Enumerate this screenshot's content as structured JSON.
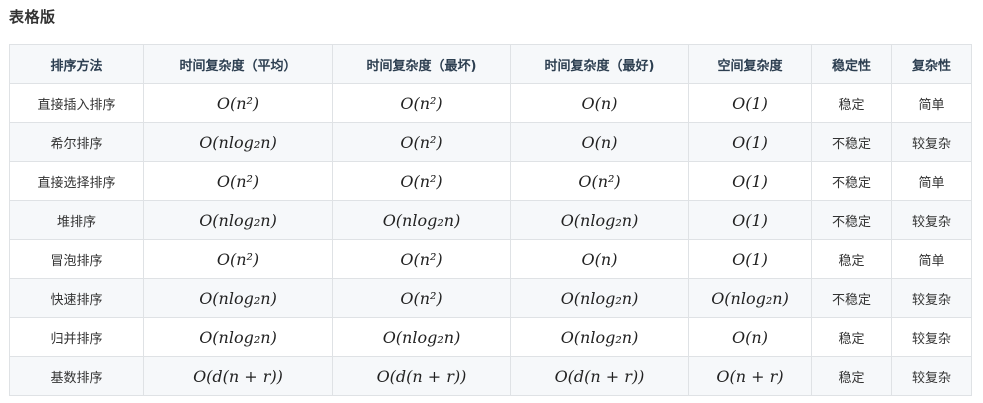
{
  "page": {
    "title": "表格版"
  },
  "table": {
    "headers": [
      "排序方法",
      "时间复杂度（平均）",
      "时间复杂度（最坏)",
      "时间复杂度（最好)",
      "空间复杂度",
      "稳定性",
      "复杂性"
    ],
    "rows": [
      [
        "直接插入排序",
        "O(n²)",
        "O(n²)",
        "O(n)",
        "O(1)",
        "稳定",
        "简单"
      ],
      [
        "希尔排序",
        "O(nlog₂n)",
        "O(n²)",
        "O(n)",
        "O(1)",
        "不稳定",
        "较复杂"
      ],
      [
        "直接选择排序",
        "O(n²)",
        "O(n²)",
        "O(n²)",
        "O(1)",
        "不稳定",
        "简单"
      ],
      [
        "堆排序",
        "O(nlog₂n)",
        "O(nlog₂n)",
        "O(nlog₂n)",
        "O(1)",
        "不稳定",
        "较复杂"
      ],
      [
        "冒泡排序",
        "O(n²)",
        "O(n²)",
        "O(n)",
        "O(1)",
        "稳定",
        "简单"
      ],
      [
        "快速排序",
        "O(nlog₂n)",
        "O(n²)",
        "O(nlog₂n)",
        "O(nlog₂n)",
        "不稳定",
        "较复杂"
      ],
      [
        "归并排序",
        "O(nlog₂n)",
        "O(nlog₂n)",
        "O(nlog₂n)",
        "O(n)",
        "稳定",
        "较复杂"
      ],
      [
        "基数排序",
        "O(d(n + r))",
        "O(d(n + r))",
        "O(d(n + r))",
        "O(n + r)",
        "稳定",
        "较复杂"
      ]
    ]
  }
}
